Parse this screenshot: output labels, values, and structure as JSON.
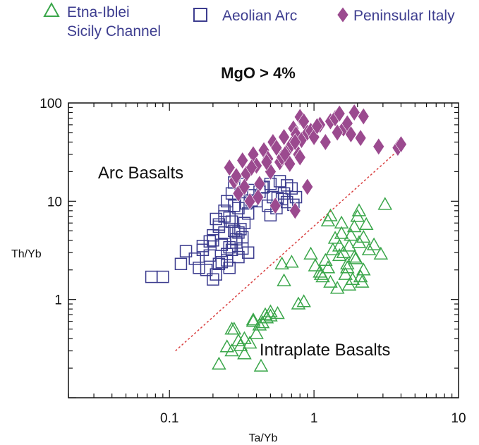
{
  "chart_data": {
    "type": "scatter",
    "title": "MgO > 4%",
    "xlabel": "Ta/Yb",
    "ylabel": "Th/Yb",
    "xscale": "log",
    "yscale": "log",
    "xlim": [
      0.02,
      10
    ],
    "ylim": [
      0.1,
      100
    ],
    "x_ticks": [
      {
        "value": 0.1,
        "label": "0.1"
      },
      {
        "value": 1,
        "label": "1"
      },
      {
        "value": 10,
        "label": "10"
      }
    ],
    "y_ticks": [
      {
        "value": 1,
        "label": "1"
      },
      {
        "value": 10,
        "label": "10"
      },
      {
        "value": 100,
        "label": "100"
      }
    ],
    "legend": {
      "position": "top",
      "entries": [
        {
          "series": 0,
          "lines": [
            "Etna-Iblei",
            "Sicily Channel"
          ]
        },
        {
          "series": 1,
          "lines": [
            "Aeolian Arc"
          ]
        },
        {
          "series": 2,
          "lines": [
            "Peninsular Italy"
          ]
        }
      ]
    },
    "annotations": [
      {
        "text": "Arc Basalts",
        "x": 0.032,
        "y": 17
      },
      {
        "text": "Intraplate Basalts",
        "x": 0.42,
        "y": 0.27
      }
    ],
    "reference_line": {
      "style": "dashed",
      "color": "#d94040",
      "x": [
        0.11,
        4.0
      ],
      "y": [
        0.3,
        35
      ]
    },
    "series": [
      {
        "name": "Etna-Iblei Sicily Channel",
        "marker": "triangle-open",
        "color": "#3aa64a",
        "x": [
          0.22,
          0.25,
          0.27,
          0.28,
          0.3,
          0.33,
          0.36,
          0.38,
          0.4,
          0.42,
          0.43,
          0.46,
          0.5,
          0.56,
          0.62,
          0.7,
          0.78,
          0.85,
          0.95,
          1.02,
          1.1,
          1.15,
          1.2,
          1.25,
          1.3,
          1.35,
          1.4,
          1.45,
          1.5,
          1.55,
          1.6,
          1.65,
          1.7,
          1.75,
          1.8,
          1.85,
          1.9,
          1.95,
          2.0,
          2.05,
          2.1,
          2.15,
          2.2,
          2.3,
          2.4,
          2.6,
          2.9,
          3.1,
          1.3,
          1.5,
          1.7,
          1.9,
          2.2,
          0.27,
          0.33,
          0.38,
          0.44,
          0.5,
          0.6,
          1.25,
          1.55,
          1.75,
          2.05,
          0.31,
          0.47,
          1.12
        ],
        "y": [
          0.22,
          0.33,
          0.3,
          0.5,
          0.38,
          0.28,
          0.36,
          0.6,
          0.45,
          0.55,
          0.21,
          0.7,
          0.75,
          0.72,
          1.55,
          2.4,
          0.9,
          0.95,
          2.9,
          2.2,
          1.9,
          1.7,
          2.5,
          6.3,
          1.5,
          3.2,
          4.2,
          1.3,
          2.8,
          6.0,
          3.0,
          1.8,
          2.3,
          3.5,
          4.5,
          1.6,
          5.5,
          2.6,
          7.0,
          3.8,
          1.7,
          1.5,
          2.0,
          5.8,
          3.2,
          3.6,
          2.9,
          9.3,
          7.1,
          3.5,
          2.1,
          2.7,
          4.3,
          0.5,
          0.4,
          0.62,
          0.58,
          0.68,
          2.3,
          2.1,
          4.7,
          1.4,
          8.0,
          0.34,
          0.65,
          1.8
        ]
      },
      {
        "name": "Aeolian Arc",
        "marker": "square-open",
        "color": "#3d3d8f",
        "x": [
          0.075,
          0.09,
          0.12,
          0.13,
          0.15,
          0.16,
          0.17,
          0.18,
          0.19,
          0.2,
          0.21,
          0.22,
          0.22,
          0.23,
          0.24,
          0.25,
          0.25,
          0.26,
          0.27,
          0.27,
          0.28,
          0.29,
          0.3,
          0.3,
          0.31,
          0.32,
          0.33,
          0.34,
          0.35,
          0.36,
          0.38,
          0.4,
          0.42,
          0.45,
          0.48,
          0.5,
          0.52,
          0.55,
          0.58,
          0.6,
          0.62,
          0.65,
          0.7,
          0.75,
          0.2,
          0.22,
          0.24,
          0.26,
          0.28,
          0.3,
          0.32,
          0.23,
          0.25,
          0.27,
          0.29,
          0.31,
          0.19,
          0.21,
          0.24,
          0.26,
          0.35,
          0.37,
          0.44,
          0.5,
          0.56,
          0.65,
          0.72,
          0.17,
          0.2,
          0.28
        ],
        "y": [
          1.7,
          1.7,
          2.3,
          3.1,
          2.6,
          2.1,
          3.5,
          2.0,
          2.8,
          4.0,
          1.8,
          2.3,
          5.5,
          3.6,
          4.8,
          10.0,
          2.5,
          6.8,
          3.2,
          12.0,
          5.0,
          3.8,
          8.5,
          2.7,
          15.0,
          4.3,
          6.0,
          9.5,
          3.0,
          11.5,
          13.0,
          10.0,
          12.5,
          14.0,
          9.0,
          15.0,
          11.0,
          8.5,
          16.0,
          10.5,
          12.0,
          9.8,
          13.5,
          11.0,
          4.5,
          5.8,
          7.0,
          3.4,
          9.0,
          4.8,
          3.3,
          2.4,
          2.9,
          6.2,
          4.1,
          5.2,
          3.9,
          6.6,
          8.0,
          2.1,
          7.5,
          10.2,
          13.8,
          7.2,
          10.8,
          14.5,
          9.2,
          3.2,
          1.6,
          15.5
        ]
      },
      {
        "name": "Peninsular Italy",
        "marker": "diamond-filled",
        "color": "#9b4a8f",
        "x": [
          0.26,
          0.28,
          0.3,
          0.32,
          0.34,
          0.36,
          0.38,
          0.4,
          0.42,
          0.45,
          0.48,
          0.5,
          0.52,
          0.55,
          0.58,
          0.6,
          0.62,
          0.65,
          0.7,
          0.72,
          0.75,
          0.78,
          0.8,
          0.82,
          0.85,
          0.9,
          0.95,
          1.0,
          1.1,
          1.2,
          1.3,
          1.4,
          1.5,
          1.6,
          1.7,
          1.8,
          1.9,
          2.1,
          2.2,
          2.8,
          3.8,
          4.0,
          0.29,
          0.33,
          0.37,
          0.41,
          0.47,
          0.54,
          0.63,
          0.68,
          0.74,
          0.8,
          0.74,
          0.9,
          1.05,
          1.45
        ],
        "y": [
          22,
          16,
          12,
          26,
          19,
          10,
          30,
          23,
          15,
          33,
          27,
          20,
          40,
          35,
          25,
          28,
          45,
          32,
          38,
          55,
          48,
          30,
          72,
          42,
          65,
          50,
          52,
          45,
          60,
          40,
          65,
          70,
          78,
          55,
          62,
          48,
          80,
          44,
          73,
          36,
          35,
          38,
          18,
          14,
          22,
          11,
          25,
          9,
          30,
          24,
          40,
          28,
          8,
          14,
          58,
          50
        ]
      }
    ]
  }
}
